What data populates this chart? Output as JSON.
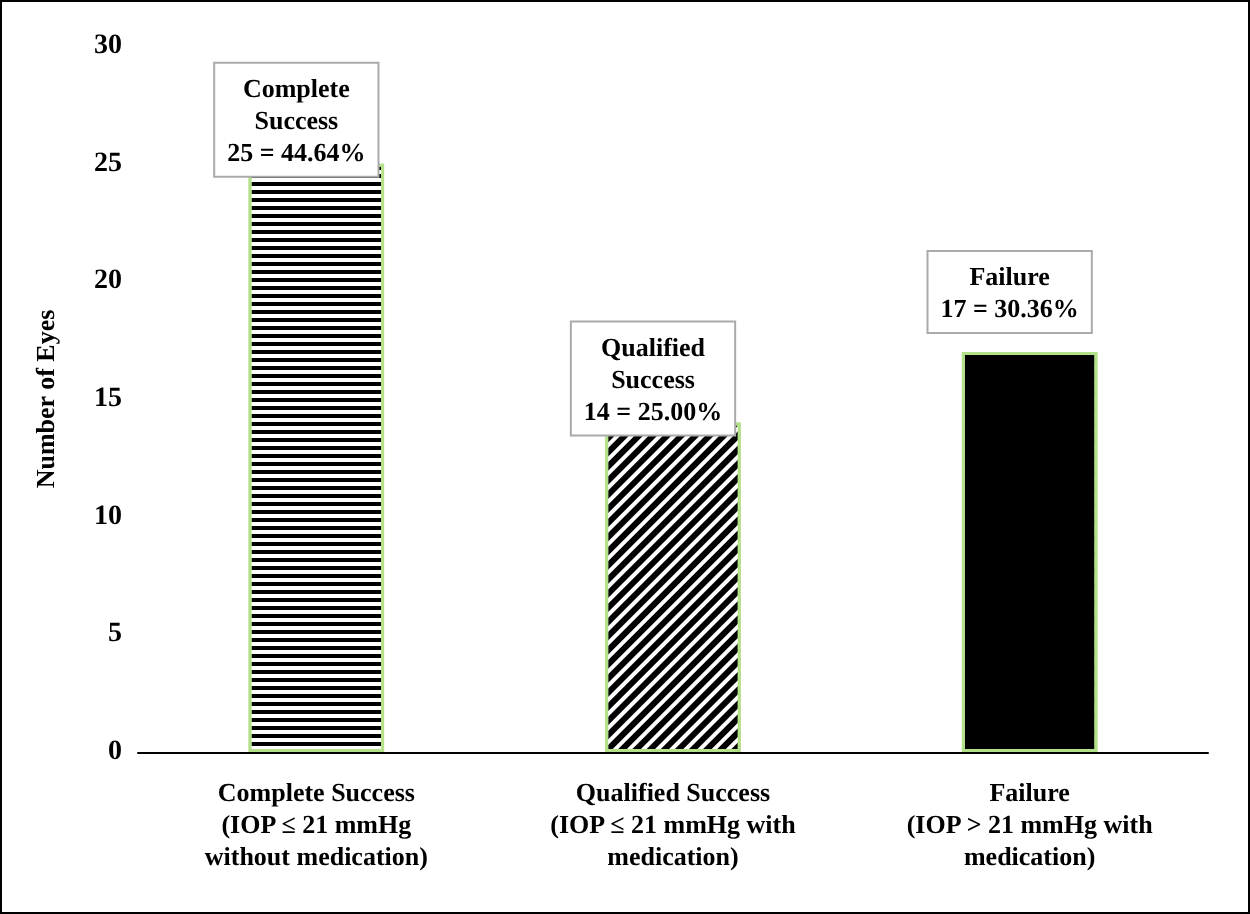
{
  "chart_data": {
    "type": "bar",
    "ylabel": "Number of Eyes",
    "categories": [
      "Complete Success\n(IOP ≤ 21 mmHg\nwithout medication)",
      "Qualified Success\n(IOP ≤ 21 mmHg with\nmedication)",
      "Failure\n(IOP > 21 mmHg with\nmedication)"
    ],
    "values": [
      25,
      14,
      17
    ],
    "colors": [
      "#000000",
      "#000000",
      "#000000"
    ],
    "value_labels": [
      "Complete\nSuccess\n25 = 44.64%",
      "Qualified\nSuccess\n14 = 25.00%",
      "Failure\n17 = 30.36%"
    ],
    "ylim": [
      0,
      30
    ],
    "yticks": [
      0,
      5,
      10,
      15,
      20,
      25,
      30
    ],
    "grid": false
  }
}
